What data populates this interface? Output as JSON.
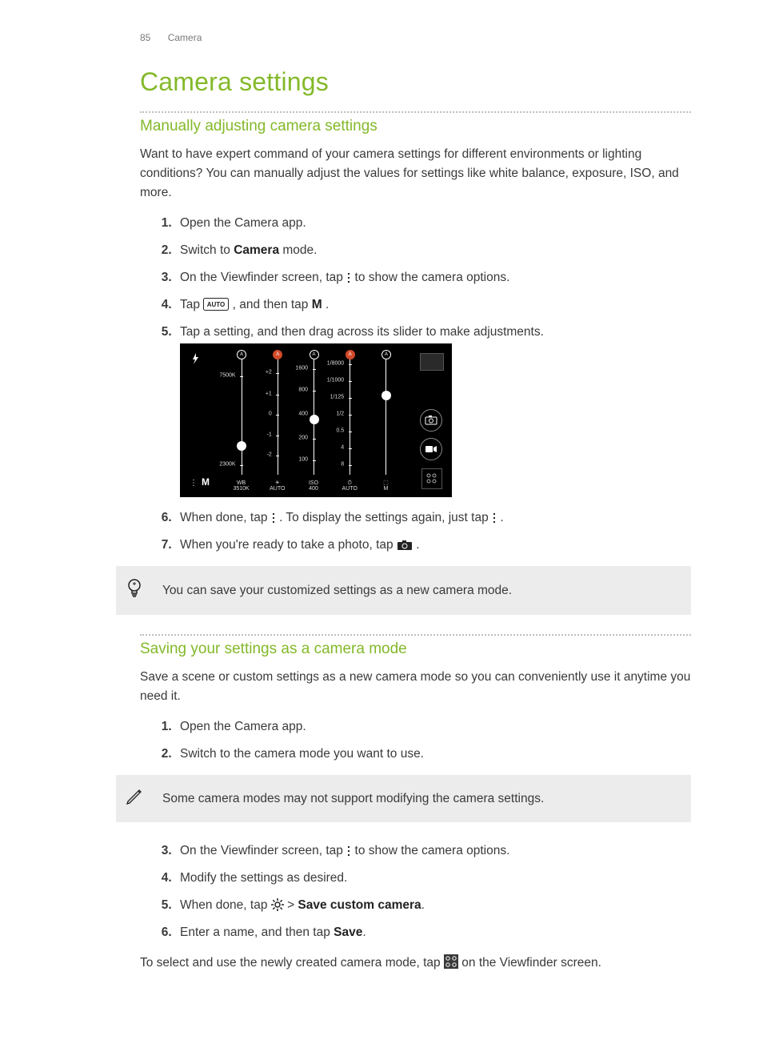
{
  "header": {
    "page_number": "85",
    "section": "Camera"
  },
  "title": "Camera settings",
  "s1": {
    "heading": "Manually adjusting camera settings",
    "intro": "Want to have expert command of your camera settings for different environments or lighting conditions? You can manually adjust the values for settings like white balance, exposure, ISO, and more.",
    "steps": {
      "n1": "Open the Camera app.",
      "n2a": "Switch to ",
      "n2b": "Camera",
      "n2c": " mode.",
      "n3a": "On the Viewfinder screen, tap ",
      "n3b": " to show the camera options.",
      "n4a": "Tap ",
      "n4b": " , and then tap ",
      "n4c_bold": "M",
      "n4d": " .",
      "n5": "Tap a setting, and then drag across its slider to make adjustments.",
      "n6a": "When done, tap ",
      "n6b": ". To display the settings again, just tap ",
      "n6c": ".",
      "n7a": "When you're ready to take a photo, tap ",
      "n7b": "."
    },
    "tip": "You can save your customized settings as a new camera mode."
  },
  "s2": {
    "heading": "Saving your settings as a camera mode",
    "intro": "Save a scene or custom settings as a new camera mode so you can conveniently use it anytime you need it.",
    "stepsA": {
      "n1": "Open the Camera app.",
      "n2": "Switch to the camera mode you want to use."
    },
    "note": "Some camera modes may not support modifying the camera settings.",
    "stepsB": {
      "n3a": "On the Viewfinder screen, tap ",
      "n3b": " to show the camera options.",
      "n4": "Modify the settings as desired.",
      "n5a": "When done, tap ",
      "n5b": " > ",
      "n5c_bold": "Save custom camera",
      "n5d": ".",
      "n6a": "Enter a name, and then tap ",
      "n6b_bold": "Save",
      "n6c": "."
    },
    "outro_a": "To select and use the newly created camera mode, tap ",
    "outro_b": " on the Viewfinder screen."
  },
  "camshot": {
    "bg": "#000000",
    "columns": [
      {
        "selected": false,
        "knob": 0.72,
        "ticks": [
          {
            "pos": 0.18,
            "label": "7500K"
          },
          {
            "pos": 0.92,
            "label": "2300K"
          }
        ],
        "bottom": "WB\n3510K"
      },
      {
        "selected": true,
        "knob": null,
        "ticks": [
          {
            "pos": 0.15,
            "label": "+2"
          },
          {
            "pos": 0.33,
            "label": "+1"
          },
          {
            "pos": 0.5,
            "label": "0"
          },
          {
            "pos": 0.67,
            "label": "-1"
          },
          {
            "pos": 0.84,
            "label": "-2"
          }
        ],
        "bottom": "☀\nAUTO"
      },
      {
        "selected": false,
        "knob": 0.5,
        "ticks": [
          {
            "pos": 0.12,
            "label": "1600"
          },
          {
            "pos": 0.3,
            "label": "800"
          },
          {
            "pos": 0.5,
            "label": "400"
          },
          {
            "pos": 0.7,
            "label": "200"
          },
          {
            "pos": 0.88,
            "label": "100"
          }
        ],
        "bottom": "ISO\n400"
      },
      {
        "selected": true,
        "knob": null,
        "ticks": [
          {
            "pos": 0.08,
            "label": "1/8000"
          },
          {
            "pos": 0.22,
            "label": "1/1000"
          },
          {
            "pos": 0.36,
            "label": "1/125"
          },
          {
            "pos": 0.5,
            "label": "1/2"
          },
          {
            "pos": 0.64,
            "label": "0.5"
          },
          {
            "pos": 0.78,
            "label": "4"
          },
          {
            "pos": 0.92,
            "label": "8"
          }
        ],
        "bottom": "⏱\nAUTO"
      },
      {
        "selected": false,
        "knob": 0.3,
        "ticks": [],
        "bottom": "⬚\nM"
      }
    ],
    "labels": {
      "M": "M",
      "flash": "⚡",
      "menu_dots": "⋮"
    }
  },
  "colors": {
    "accent": "#84b92a",
    "text": "#3a3a3a",
    "muted": "#7a7a7a",
    "callout_bg": "#ececec",
    "camshot_selected": "#d24a2a"
  },
  "icons": {
    "vdots": "⋮",
    "auto_badge": "AUTO",
    "M": "M",
    "camera": "camera",
    "lightbulb": "tip",
    "pencil": "note",
    "settings_gear": "gear",
    "grid_modes": "grid"
  }
}
